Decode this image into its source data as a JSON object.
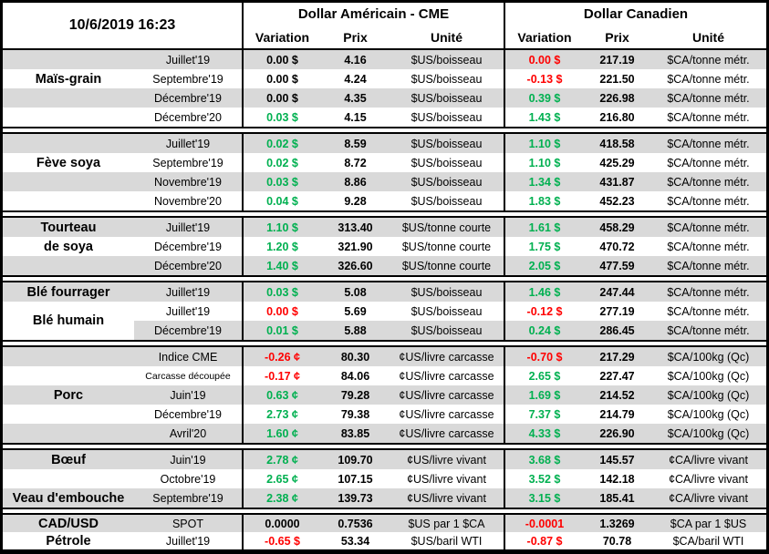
{
  "meta": {
    "timestamp": "10/6/2019 16:23"
  },
  "header": {
    "usd_title": "Dollar Américain - CME",
    "cad_title": "Dollar Canadien",
    "col_variation": "Variation",
    "col_prix": "Prix",
    "col_unite": "Unité"
  },
  "colors": {
    "positive": "#00b050",
    "negative": "#ff0000",
    "neutral": "#000000",
    "band": "#d9d9d9"
  },
  "sections": [
    {
      "id": "mais-grain",
      "rows": [
        {
          "label": "",
          "month": "Juillet'19",
          "us_var": "0.00 $",
          "us_var_c": "k",
          "us_prix": "4.16",
          "us_unit": "$US/boisseau",
          "ca_var": "0.00 $",
          "ca_var_c": "r",
          "ca_prix": "217.19",
          "ca_unit": "$CA/tonne métr.",
          "shade": true
        },
        {
          "label": "Maïs-grain",
          "month": "Septembre'19",
          "us_var": "0.00 $",
          "us_var_c": "k",
          "us_prix": "4.24",
          "us_unit": "$US/boisseau",
          "ca_var": "-0.13 $",
          "ca_var_c": "r",
          "ca_prix": "221.50",
          "ca_unit": "$CA/tonne métr.",
          "shade": false
        },
        {
          "label": "",
          "month": "Décembre'19",
          "us_var": "0.00 $",
          "us_var_c": "k",
          "us_prix": "4.35",
          "us_unit": "$US/boisseau",
          "ca_var": "0.39 $",
          "ca_var_c": "g",
          "ca_prix": "226.98",
          "ca_unit": "$CA/tonne métr.",
          "shade": true
        },
        {
          "label": "",
          "month": "Décembre'20",
          "us_var": "0.03 $",
          "us_var_c": "g",
          "us_prix": "4.15",
          "us_unit": "$US/boisseau",
          "ca_var": "1.43 $",
          "ca_var_c": "g",
          "ca_prix": "216.80",
          "ca_unit": "$CA/tonne métr.",
          "shade": false
        }
      ]
    },
    {
      "id": "feve-soya",
      "rows": [
        {
          "label": "",
          "month": "Juillet'19",
          "us_var": "0.02 $",
          "us_var_c": "g",
          "us_prix": "8.59",
          "us_unit": "$US/boisseau",
          "ca_var": "1.10 $",
          "ca_var_c": "g",
          "ca_prix": "418.58",
          "ca_unit": "$CA/tonne métr.",
          "shade": true
        },
        {
          "label": "Fève soya",
          "month": "Septembre'19",
          "us_var": "0.02 $",
          "us_var_c": "g",
          "us_prix": "8.72",
          "us_unit": "$US/boisseau",
          "ca_var": "1.10 $",
          "ca_var_c": "g",
          "ca_prix": "425.29",
          "ca_unit": "$CA/tonne métr.",
          "shade": false
        },
        {
          "label": "",
          "month": "Novembre'19",
          "us_var": "0.03 $",
          "us_var_c": "g",
          "us_prix": "8.86",
          "us_unit": "$US/boisseau",
          "ca_var": "1.34 $",
          "ca_var_c": "g",
          "ca_prix": "431.87",
          "ca_unit": "$CA/tonne métr.",
          "shade": true
        },
        {
          "label": "",
          "month": "Novembre'20",
          "us_var": "0.04 $",
          "us_var_c": "g",
          "us_prix": "9.28",
          "us_unit": "$US/boisseau",
          "ca_var": "1.83 $",
          "ca_var_c": "g",
          "ca_prix": "452.23",
          "ca_unit": "$CA/tonne métr.",
          "shade": false
        }
      ]
    },
    {
      "id": "tourteau-de-soya",
      "rows": [
        {
          "label": "Tourteau",
          "month": "Juillet'19",
          "us_var": "1.10 $",
          "us_var_c": "g",
          "us_prix": "313.40",
          "us_unit": "$US/tonne courte",
          "ca_var": "1.61 $",
          "ca_var_c": "g",
          "ca_prix": "458.29",
          "ca_unit": "$CA/tonne métr.",
          "shade": true
        },
        {
          "label": "de soya",
          "month": "Décembre'19",
          "us_var": "1.20 $",
          "us_var_c": "g",
          "us_prix": "321.90",
          "us_unit": "$US/tonne courte",
          "ca_var": "1.75 $",
          "ca_var_c": "g",
          "ca_prix": "470.72",
          "ca_unit": "$CA/tonne métr.",
          "shade": false
        },
        {
          "label": "",
          "month": "Décembre'20",
          "us_var": "1.40 $",
          "us_var_c": "g",
          "us_prix": "326.60",
          "us_unit": "$US/tonne courte",
          "ca_var": "2.05 $",
          "ca_var_c": "g",
          "ca_prix": "477.59",
          "ca_unit": "$CA/tonne métr.",
          "shade": true
        }
      ]
    },
    {
      "id": "ble",
      "rows": [
        {
          "label": "Blé fourrager",
          "month": "Juillet'19",
          "us_var": "0.03 $",
          "us_var_c": "g",
          "us_prix": "5.08",
          "us_unit": "$US/boisseau",
          "ca_var": "1.46 $",
          "ca_var_c": "g",
          "ca_prix": "247.44",
          "ca_unit": "$CA/tonne métr.",
          "shade": true
        },
        {
          "label": "Blé humain",
          "month": "Juillet'19",
          "us_var": "0.00 $",
          "us_var_c": "r",
          "us_prix": "5.69",
          "us_unit": "$US/boisseau",
          "ca_var": "-0.12 $",
          "ca_var_c": "r",
          "ca_prix": "277.19",
          "ca_unit": "$CA/tonne métr.",
          "shade": false,
          "label_offset": true
        },
        {
          "label": "",
          "month": "Décembre'19",
          "us_var": "0.01 $",
          "us_var_c": "g",
          "us_prix": "5.88",
          "us_unit": "$US/boisseau",
          "ca_var": "0.24 $",
          "ca_var_c": "g",
          "ca_prix": "286.45",
          "ca_unit": "$CA/tonne métr.",
          "shade": true,
          "label_white": true
        }
      ]
    },
    {
      "id": "porc",
      "rows": [
        {
          "label": "",
          "month": "Indice CME",
          "us_var": "-0.26 ¢",
          "us_var_c": "r",
          "us_prix": "80.30",
          "us_unit": "¢US/livre carcasse",
          "ca_var": "-0.70 $",
          "ca_var_c": "r",
          "ca_prix": "217.29",
          "ca_unit": "$CA/100kg (Qc)",
          "shade": true
        },
        {
          "label": "",
          "month": "Carcasse découpée",
          "us_var": "-0.17 ¢",
          "us_var_c": "r",
          "us_prix": "84.06",
          "us_unit": "¢US/livre carcasse",
          "ca_var": "2.65 $",
          "ca_var_c": "g",
          "ca_prix": "227.47",
          "ca_unit": "$CA/100kg (Qc)",
          "shade": false,
          "month_small": true
        },
        {
          "label": "Porc",
          "month": "Juin'19",
          "us_var": "0.63 ¢",
          "us_var_c": "g",
          "us_prix": "79.28",
          "us_unit": "¢US/livre carcasse",
          "ca_var": "1.69 $",
          "ca_var_c": "g",
          "ca_prix": "214.52",
          "ca_unit": "$CA/100kg (Qc)",
          "shade": true
        },
        {
          "label": "",
          "month": "Décembre'19",
          "us_var": "2.73 ¢",
          "us_var_c": "g",
          "us_prix": "79.38",
          "us_unit": "¢US/livre carcasse",
          "ca_var": "7.37 $",
          "ca_var_c": "g",
          "ca_prix": "214.79",
          "ca_unit": "$CA/100kg (Qc)",
          "shade": false
        },
        {
          "label": "",
          "month": "Avril'20",
          "us_var": "1.60 ¢",
          "us_var_c": "g",
          "us_prix": "83.85",
          "us_unit": "¢US/livre carcasse",
          "ca_var": "4.33 $",
          "ca_var_c": "g",
          "ca_prix": "226.90",
          "ca_unit": "$CA/100kg (Qc)",
          "shade": true
        }
      ]
    },
    {
      "id": "boeuf-veau",
      "rows": [
        {
          "label": "Bœuf",
          "month": "Juin'19",
          "us_var": "2.78 ¢",
          "us_var_c": "g",
          "us_prix": "109.70",
          "us_unit": "¢US/livre vivant",
          "ca_var": "3.68 $",
          "ca_var_c": "g",
          "ca_prix": "145.57",
          "ca_unit": "¢CA/livre vivant",
          "shade": true
        },
        {
          "label": "",
          "month": "Octobre'19",
          "us_var": "2.65 ¢",
          "us_var_c": "g",
          "us_prix": "107.15",
          "us_unit": "¢US/livre vivant",
          "ca_var": "3.52 $",
          "ca_var_c": "g",
          "ca_prix": "142.18",
          "ca_unit": "¢CA/livre vivant",
          "shade": false
        },
        {
          "label": "Veau d'embouche",
          "month": "Septembre'19",
          "us_var": "2.38 ¢",
          "us_var_c": "g",
          "us_prix": "139.73",
          "us_unit": "¢US/livre vivant",
          "ca_var": "3.15 $",
          "ca_var_c": "g",
          "ca_prix": "185.41",
          "ca_unit": "¢CA/livre vivant",
          "shade": true
        }
      ]
    },
    {
      "id": "cad-petrole",
      "small": true,
      "rows": [
        {
          "label": "CAD/USD",
          "month": "SPOT",
          "us_var": "0.0000",
          "us_var_c": "k",
          "us_prix": "0.7536",
          "us_unit": "$US par 1 $CA",
          "ca_var": "-0.0001",
          "ca_var_c": "r",
          "ca_prix": "1.3269",
          "ca_unit": "$CA par 1 $US",
          "shade": true
        },
        {
          "label": "Pétrole",
          "month": "Juillet'19",
          "us_var": "-0.65 $",
          "us_var_c": "r",
          "us_prix": "53.34",
          "us_unit": "$US/baril WTI",
          "ca_var": "-0.87 $",
          "ca_var_c": "r",
          "ca_prix": "70.78",
          "ca_unit": "$CA/baril WTI",
          "shade": false
        }
      ]
    }
  ]
}
